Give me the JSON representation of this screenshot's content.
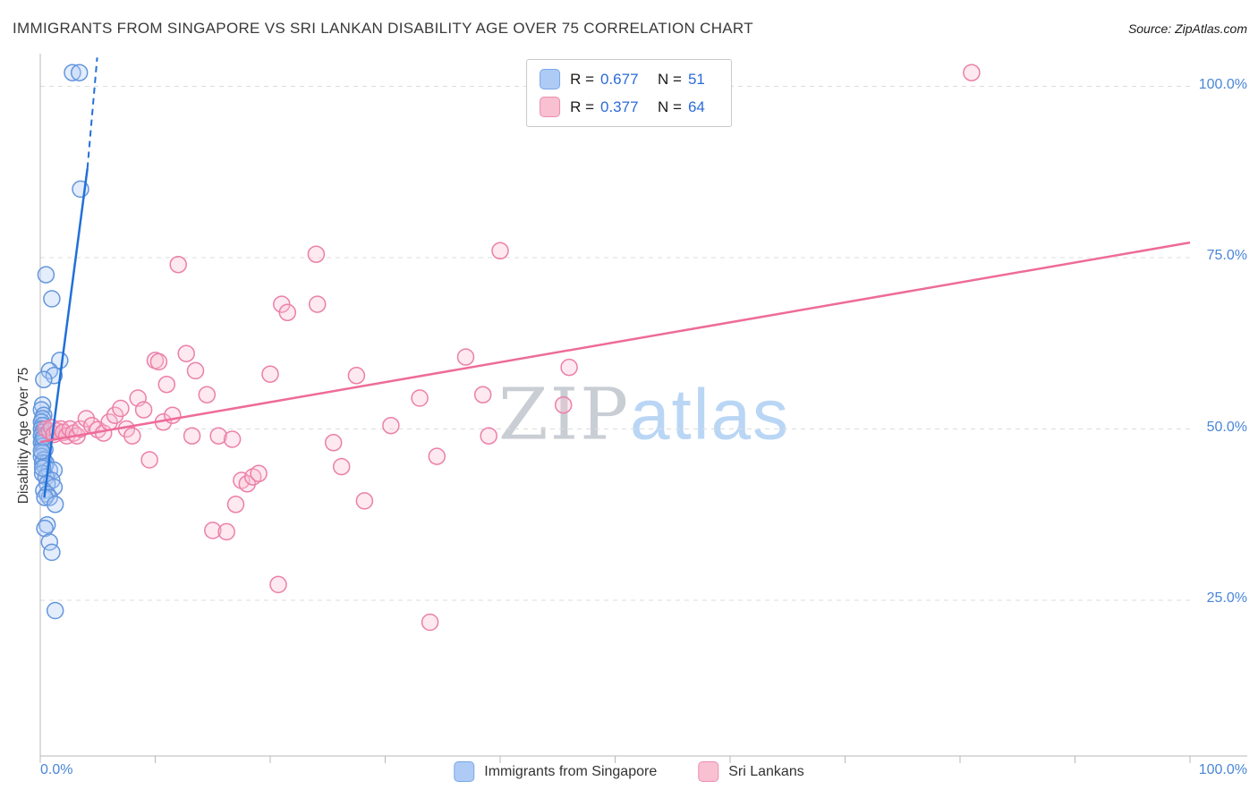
{
  "page": {
    "title": "IMMIGRANTS FROM SINGAPORE VS SRI LANKAN DISABILITY AGE OVER 75 CORRELATION CHART",
    "source": "Source: ZipAtlas.com"
  },
  "watermark": {
    "part1": "ZIP",
    "part2": "atlas"
  },
  "legend": {
    "items": [
      {
        "r_label": "R =",
        "r_value": "0.677",
        "n_label": "N =",
        "n_value": "51"
      },
      {
        "r_label": "R =",
        "r_value": "0.377",
        "n_label": "N =",
        "n_value": "64"
      }
    ]
  },
  "bottom_legend": {
    "items": [
      {
        "label": "Immigrants from Singapore"
      },
      {
        "label": "Sri Lankans"
      }
    ]
  },
  "axes": {
    "y_label": "Disability Age Over 75",
    "y_ticks": [
      {
        "label": "100.0%",
        "value": 1.0
      },
      {
        "label": "75.0%",
        "value": 0.75
      },
      {
        "label": "50.0%",
        "value": 0.5
      },
      {
        "label": "25.0%",
        "value": 0.25
      }
    ],
    "x_ticks": [
      {
        "label": "0.0%",
        "value": 0.0
      },
      {
        "label": "100.0%",
        "value": 1.0
      }
    ]
  },
  "colors": {
    "blue_stroke": "#6496dc",
    "blue_fill": "#aecbf5",
    "blue_line": "#2170d8",
    "pink_stroke": "#ec7fa9",
    "pink_fill": "#f9c0d2",
    "pink_line": "#ee6b98",
    "grid": "#dcdcdc",
    "axis": "#b8b8b8",
    "tick_label": "#4a86d8"
  },
  "chart_data": {
    "type": "scatter",
    "title": "IMMIGRANTS FROM SINGAPORE VS SRI LANKAN DISABILITY AGE OVER 75 CORRELATION CHART",
    "xlabel": "",
    "ylabel": "Disability Age Over 75",
    "xlim": [
      0,
      1.0
    ],
    "ylim": [
      0,
      1.05
    ],
    "grid_y": [
      0.25,
      0.5,
      0.75,
      1.0
    ],
    "x_tick_step": 0.1,
    "legend_position": "top-center",
    "series": [
      {
        "name": "Immigrants from Singapore",
        "R": 0.677,
        "N": 51,
        "trend_solid": [
          [
            0.0035,
            0.4
          ],
          [
            0.041,
            0.88
          ]
        ],
        "trend_dashed": [
          [
            0.041,
            0.88
          ],
          [
            0.0495,
            1.042
          ]
        ],
        "points": [
          [
            0.028,
            1.02
          ],
          [
            0.034,
            1.02
          ],
          [
            0.035,
            0.85
          ],
          [
            0.005,
            0.725
          ],
          [
            0.01,
            0.69
          ],
          [
            0.017,
            0.6
          ],
          [
            0.008,
            0.585
          ],
          [
            0.012,
            0.578
          ],
          [
            0.003,
            0.572
          ],
          [
            0.002,
            0.535
          ],
          [
            0.001,
            0.528
          ],
          [
            0.003,
            0.52
          ],
          [
            0.002,
            0.515
          ],
          [
            0.001,
            0.51
          ],
          [
            0.002,
            0.505
          ],
          [
            0.003,
            0.5
          ],
          [
            0.001,
            0.5
          ],
          [
            0.002,
            0.495
          ],
          [
            0.004,
            0.49
          ],
          [
            0.001,
            0.49
          ],
          [
            0.002,
            0.485
          ],
          [
            0.003,
            0.48
          ],
          [
            0.001,
            0.48
          ],
          [
            0.002,
            0.475
          ],
          [
            0.004,
            0.47
          ],
          [
            0.002,
            0.465
          ],
          [
            0.001,
            0.46
          ],
          [
            0.003,
            0.455
          ],
          [
            0.005,
            0.45
          ],
          [
            0.002,
            0.45
          ],
          [
            0.004,
            0.445
          ],
          [
            0.008,
            0.44
          ],
          [
            0.012,
            0.44
          ],
          [
            0.002,
            0.435
          ],
          [
            0.005,
            0.43
          ],
          [
            0.01,
            0.425
          ],
          [
            0.006,
            0.42
          ],
          [
            0.012,
            0.415
          ],
          [
            0.003,
            0.41
          ],
          [
            0.006,
            0.405
          ],
          [
            0.008,
            0.4
          ],
          [
            0.004,
            0.4
          ],
          [
            0.013,
            0.39
          ],
          [
            0.006,
            0.36
          ],
          [
            0.004,
            0.355
          ],
          [
            0.008,
            0.335
          ],
          [
            0.01,
            0.32
          ],
          [
            0.013,
            0.235
          ],
          [
            0.002,
            0.443
          ],
          [
            0.001,
            0.468
          ],
          [
            0.003,
            0.488
          ]
        ]
      },
      {
        "name": "Sri Lankans",
        "R": 0.377,
        "N": 64,
        "trend_solid": [
          [
            0.0,
            0.481
          ],
          [
            1.0,
            0.772
          ]
        ],
        "points": [
          [
            0.005,
            0.5
          ],
          [
            0.008,
            0.497
          ],
          [
            0.01,
            0.502
          ],
          [
            0.012,
            0.492
          ],
          [
            0.015,
            0.497
          ],
          [
            0.018,
            0.5
          ],
          [
            0.02,
            0.495
          ],
          [
            0.023,
            0.49
          ],
          [
            0.026,
            0.5
          ],
          [
            0.029,
            0.494
          ],
          [
            0.032,
            0.49
          ],
          [
            0.035,
            0.5
          ],
          [
            0.04,
            0.515
          ],
          [
            0.045,
            0.505
          ],
          [
            0.05,
            0.499
          ],
          [
            0.055,
            0.494
          ],
          [
            0.06,
            0.51
          ],
          [
            0.065,
            0.52
          ],
          [
            0.07,
            0.53
          ],
          [
            0.075,
            0.5
          ],
          [
            0.08,
            0.49
          ],
          [
            0.085,
            0.545
          ],
          [
            0.09,
            0.528
          ],
          [
            0.095,
            0.455
          ],
          [
            0.1,
            0.6
          ],
          [
            0.103,
            0.598
          ],
          [
            0.107,
            0.51
          ],
          [
            0.11,
            0.565
          ],
          [
            0.115,
            0.52
          ],
          [
            0.12,
            0.74
          ],
          [
            0.127,
            0.61
          ],
          [
            0.132,
            0.49
          ],
          [
            0.135,
            0.585
          ],
          [
            0.145,
            0.55
          ],
          [
            0.15,
            0.352
          ],
          [
            0.155,
            0.49
          ],
          [
            0.162,
            0.35
          ],
          [
            0.167,
            0.485
          ],
          [
            0.17,
            0.39
          ],
          [
            0.175,
            0.425
          ],
          [
            0.18,
            0.42
          ],
          [
            0.185,
            0.43
          ],
          [
            0.19,
            0.435
          ],
          [
            0.2,
            0.58
          ],
          [
            0.207,
            0.273
          ],
          [
            0.21,
            0.682
          ],
          [
            0.215,
            0.67
          ],
          [
            0.24,
            0.755
          ],
          [
            0.241,
            0.682
          ],
          [
            0.255,
            0.48
          ],
          [
            0.262,
            0.445
          ],
          [
            0.275,
            0.578
          ],
          [
            0.282,
            0.395
          ],
          [
            0.305,
            0.505
          ],
          [
            0.33,
            0.545
          ],
          [
            0.339,
            0.218
          ],
          [
            0.345,
            0.46
          ],
          [
            0.37,
            0.605
          ],
          [
            0.385,
            0.55
          ],
          [
            0.39,
            0.49
          ],
          [
            0.4,
            0.76
          ],
          [
            0.455,
            0.535
          ],
          [
            0.46,
            0.59
          ],
          [
            0.81,
            1.02
          ]
        ]
      }
    ]
  }
}
